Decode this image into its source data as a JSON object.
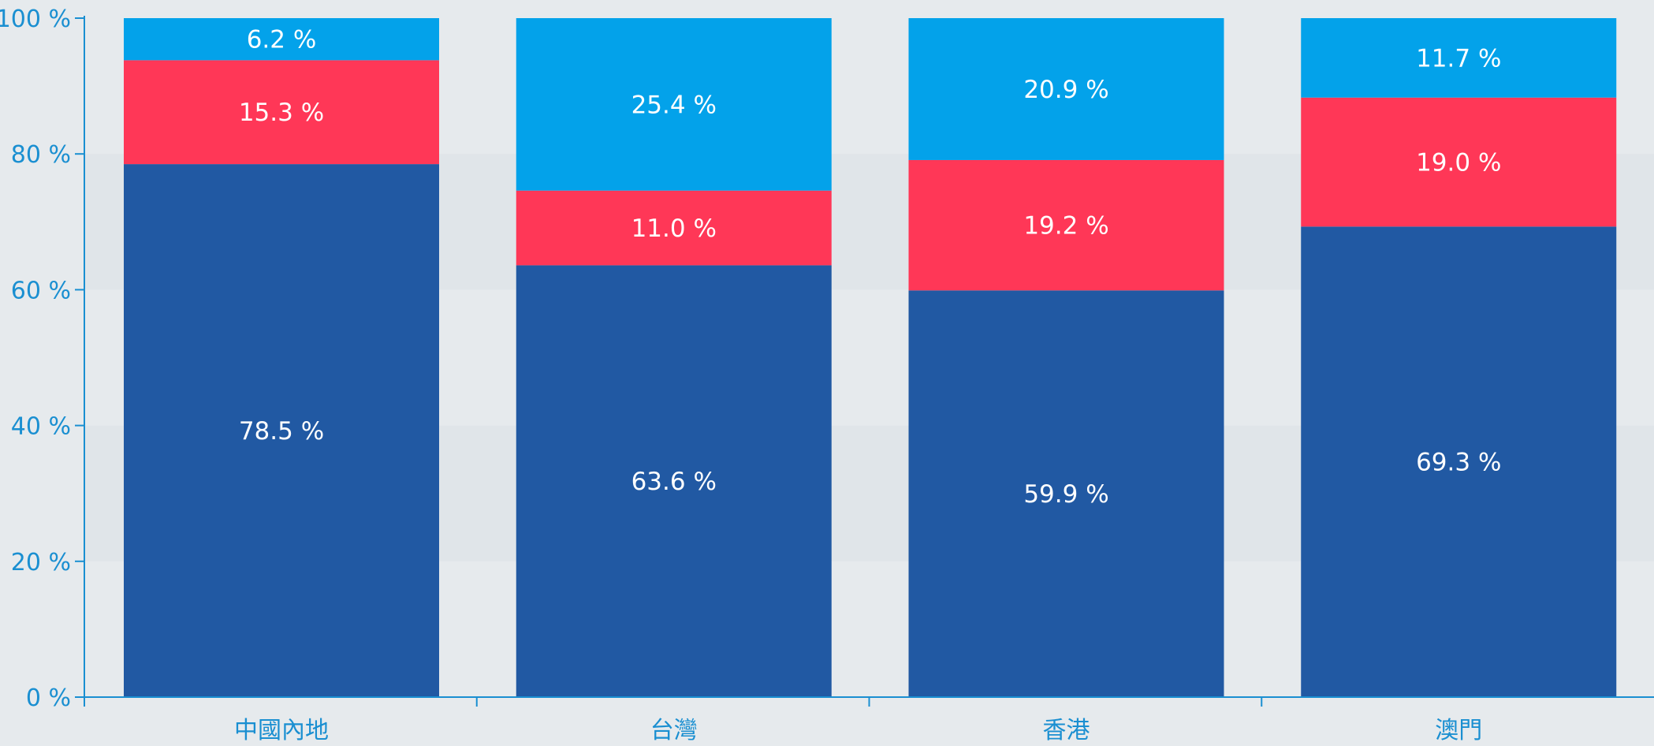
{
  "chart_data": {
    "type": "bar",
    "stacked": true,
    "percent_axis": true,
    "title": "",
    "xlabel": "",
    "ylabel": "",
    "ylim": [
      0,
      100
    ],
    "yticks": [
      "0 %",
      "20 %",
      "40 %",
      "60 %",
      "80 %",
      "100 %"
    ],
    "categories": [
      "中國內地",
      "台灣",
      "香港",
      "澳門"
    ],
    "series": [
      {
        "values": [
          78.5,
          63.6,
          59.9,
          69.3
        ],
        "labels": [
          "78.5 %",
          "63.6 %",
          "59.9 %",
          "69.3 %"
        ],
        "color": "#2159a3"
      },
      {
        "values": [
          15.3,
          11.0,
          19.2,
          19.0
        ],
        "labels": [
          "15.3 %",
          "11.0 %",
          "19.2 %",
          "19.0 %"
        ],
        "color": "#ff3757"
      },
      {
        "values": [
          6.2,
          25.4,
          20.9,
          11.7
        ],
        "labels": [
          "6.2 %",
          "25.4 %",
          "20.9 %",
          "11.7 %"
        ],
        "color": "#03a2ea"
      }
    ],
    "grid": "alternating horizontal bands",
    "legend": "none",
    "axis_color": "#1a8fd1"
  }
}
